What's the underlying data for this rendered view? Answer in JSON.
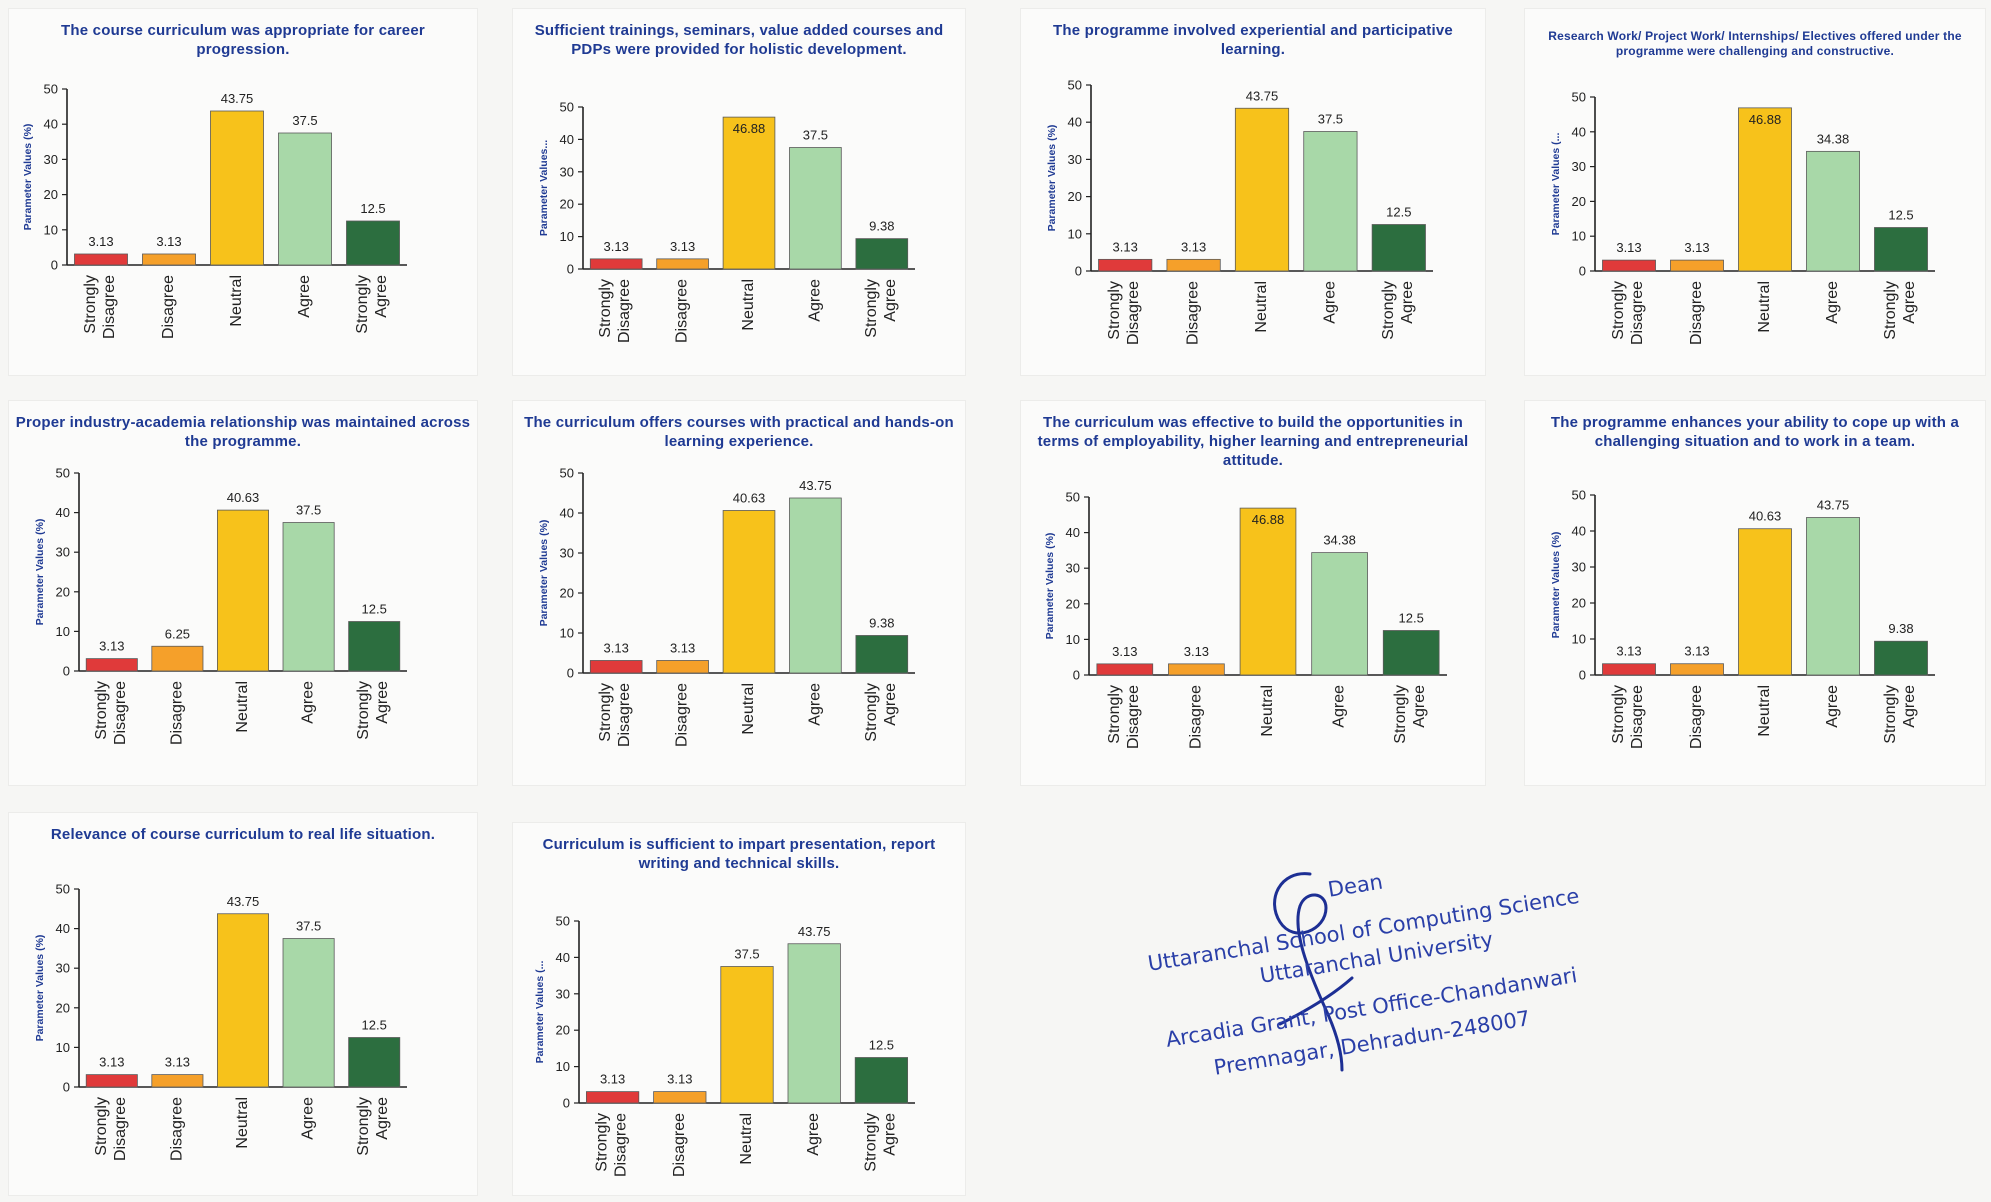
{
  "chart_data": [
    {
      "type": "bar",
      "title": "The course curriculum was appropriate for career progression.",
      "ylabel": "Parameter Values (%)",
      "categories": [
        "Strongly Disagree",
        "Disagree",
        "Neutral",
        "Agree",
        "Strongly Agree"
      ],
      "values": [
        3.13,
        3.13,
        43.75,
        37.5,
        12.5
      ],
      "value_labels": [
        "3.13",
        "3.13",
        "43.75",
        "37.5",
        "12.5"
      ],
      "ylim": [
        0,
        50
      ],
      "yticks": [
        0,
        10,
        20,
        30,
        40,
        50
      ],
      "grid": false,
      "colors": [
        "#e03a3a",
        "#f5a02a",
        "#f7c21b",
        "#a8d8a8",
        "#2c6e3f"
      ]
    },
    {
      "type": "bar",
      "title": "Sufficient trainings, seminars, value added courses and PDPs were provided for holistic development.",
      "ylabel": "Parameter Values...",
      "categories": [
        "Strongly Disagree",
        "Disagree",
        "Neutral",
        "Agree",
        "Strongly Agree"
      ],
      "values": [
        3.13,
        3.13,
        46.88,
        37.5,
        9.38
      ],
      "value_labels": [
        "3.13",
        "3.13",
        "46.88",
        "37.5",
        "9.38"
      ],
      "ylim": [
        0,
        50
      ],
      "yticks": [
        0,
        10,
        20,
        30,
        40,
        50
      ],
      "grid": false,
      "colors": [
        "#e03a3a",
        "#f5a02a",
        "#f7c21b",
        "#a8d8a8",
        "#2c6e3f"
      ]
    },
    {
      "type": "bar",
      "title": "The programme involved experiential and participative learning.",
      "ylabel": "Parameter Values (%)",
      "categories": [
        "Strongly Disagree",
        "Disagree",
        "Neutral",
        "Agree",
        "Strongly Agree"
      ],
      "values": [
        3.13,
        3.13,
        43.75,
        37.5,
        12.5
      ],
      "value_labels": [
        "3.13",
        "3.13",
        "43.75",
        "37.5",
        "12.5"
      ],
      "ylim": [
        0,
        50
      ],
      "yticks": [
        0,
        10,
        20,
        30,
        40,
        50
      ],
      "grid": false,
      "colors": [
        "#e03a3a",
        "#f5a02a",
        "#f7c21b",
        "#a8d8a8",
        "#2c6e3f"
      ]
    },
    {
      "type": "bar",
      "title": "Research Work/ Project Work/ Internships/ Electives offered under the programme were challenging and constructive.",
      "ylabel": "Parameter Values (...",
      "categories": [
        "Strongly Disagree",
        "Disagree",
        "Neutral",
        "Agree",
        "Strongly Agree"
      ],
      "values": [
        3.13,
        3.13,
        46.88,
        34.38,
        12.5
      ],
      "value_labels": [
        "3.13",
        "3.13",
        "46.88",
        "34.38",
        "12.5"
      ],
      "ylim": [
        0,
        50
      ],
      "yticks": [
        0,
        10,
        20,
        30,
        40,
        50
      ],
      "grid": false,
      "colors": [
        "#e03a3a",
        "#f5a02a",
        "#f7c21b",
        "#a8d8a8",
        "#2c6e3f"
      ]
    },
    {
      "type": "bar",
      "title": "Proper industry-academia relationship was maintained across the programme.",
      "ylabel": "Parameter Values (%)",
      "categories": [
        "Strongly Disagree",
        "Disagree",
        "Neutral",
        "Agree",
        "Strongly Agree"
      ],
      "values": [
        3.13,
        6.25,
        40.63,
        37.5,
        12.5
      ],
      "value_labels": [
        "3.13",
        "6.25",
        "40.63",
        "37.5",
        "12.5"
      ],
      "ylim": [
        0,
        50
      ],
      "yticks": [
        0,
        10,
        20,
        30,
        40,
        50
      ],
      "grid": false,
      "colors": [
        "#e03a3a",
        "#f5a02a",
        "#f7c21b",
        "#a8d8a8",
        "#2c6e3f"
      ]
    },
    {
      "type": "bar",
      "title": "The curriculum offers courses with practical and hands-on learning experience.",
      "ylabel": "Parameter Values (%)",
      "categories": [
        "Strongly Disagree",
        "Disagree",
        "Neutral",
        "Agree",
        "Strongly Agree"
      ],
      "values": [
        3.13,
        3.13,
        40.63,
        43.75,
        9.38
      ],
      "value_labels": [
        "3.13",
        "3.13",
        "40.63",
        "43.75",
        "9.38"
      ],
      "ylim": [
        0,
        50
      ],
      "yticks": [
        0,
        10,
        20,
        30,
        40,
        50
      ],
      "grid": false,
      "colors": [
        "#e03a3a",
        "#f5a02a",
        "#f7c21b",
        "#a8d8a8",
        "#2c6e3f"
      ]
    },
    {
      "type": "bar",
      "title": "The curriculum was effective to build the opportunities in terms of employability, higher learning and entrepreneurial attitude.",
      "ylabel": "Parameter Values (%)",
      "categories": [
        "Strongly Disagree",
        "Disagree",
        "Neutral",
        "Agree",
        "Strongly Agree"
      ],
      "values": [
        3.13,
        3.13,
        46.88,
        34.38,
        12.5
      ],
      "value_labels": [
        "3.13",
        "3.13",
        "46.88",
        "34.38",
        "12.5"
      ],
      "ylim": [
        0,
        50
      ],
      "yticks": [
        0,
        10,
        20,
        30,
        40,
        50
      ],
      "grid": false,
      "colors": [
        "#e03a3a",
        "#f5a02a",
        "#f7c21b",
        "#a8d8a8",
        "#2c6e3f"
      ]
    },
    {
      "type": "bar",
      "title": "The programme enhances your ability to cope up with a challenging situation and to work in a team.",
      "ylabel": "Parameter Values (%)",
      "categories": [
        "Strongly Disagree",
        "Disagree",
        "Neutral",
        "Agree",
        "Strongly Agree"
      ],
      "values": [
        3.13,
        3.13,
        40.63,
        43.75,
        9.38
      ],
      "value_labels": [
        "3.13",
        "3.13",
        "40.63",
        "43.75",
        "9.38"
      ],
      "ylim": [
        0,
        50
      ],
      "yticks": [
        0,
        10,
        20,
        30,
        40,
        50
      ],
      "grid": false,
      "colors": [
        "#e03a3a",
        "#f5a02a",
        "#f7c21b",
        "#a8d8a8",
        "#2c6e3f"
      ]
    },
    {
      "type": "bar",
      "title": "Relevance of course curriculum to real life situation.",
      "ylabel": "Parameter Values (%)",
      "categories": [
        "Strongly Disagree",
        "Disagree",
        "Neutral",
        "Agree",
        "Strongly Agree"
      ],
      "values": [
        3.13,
        3.13,
        43.75,
        37.5,
        12.5
      ],
      "value_labels": [
        "3.13",
        "3.13",
        "43.75",
        "37.5",
        "12.5"
      ],
      "ylim": [
        0,
        50
      ],
      "yticks": [
        0,
        10,
        20,
        30,
        40,
        50
      ],
      "grid": false,
      "colors": [
        "#e03a3a",
        "#f5a02a",
        "#f7c21b",
        "#a8d8a8",
        "#2c6e3f"
      ]
    },
    {
      "type": "bar",
      "title": "Curriculum is sufficient to impart presentation, report writing and technical skills.",
      "ylabel": "Parameter Values (...",
      "categories": [
        "Strongly Disagree",
        "Disagree",
        "Neutral",
        "Agree",
        "Strongly Agree"
      ],
      "values": [
        3.13,
        3.13,
        37.5,
        43.75,
        12.5
      ],
      "value_labels": [
        "3.13",
        "3.13",
        "37.5",
        "43.75",
        "12.5"
      ],
      "ylim": [
        0,
        50
      ],
      "yticks": [
        0,
        10,
        20,
        30,
        40,
        50
      ],
      "grid": false,
      "colors": [
        "#e03a3a",
        "#f5a02a",
        "#f7c21b",
        "#a8d8a8",
        "#2c6e3f"
      ]
    }
  ],
  "seal": {
    "lines": [
      "Dean",
      "Uttaranchal School of Computing Science",
      "Uttaranchal University",
      "Arcadia Grant, Post Office-Chandanwari",
      "Premnagar, Dehradun-248007"
    ],
    "ink_color": "#2a3fa8"
  }
}
